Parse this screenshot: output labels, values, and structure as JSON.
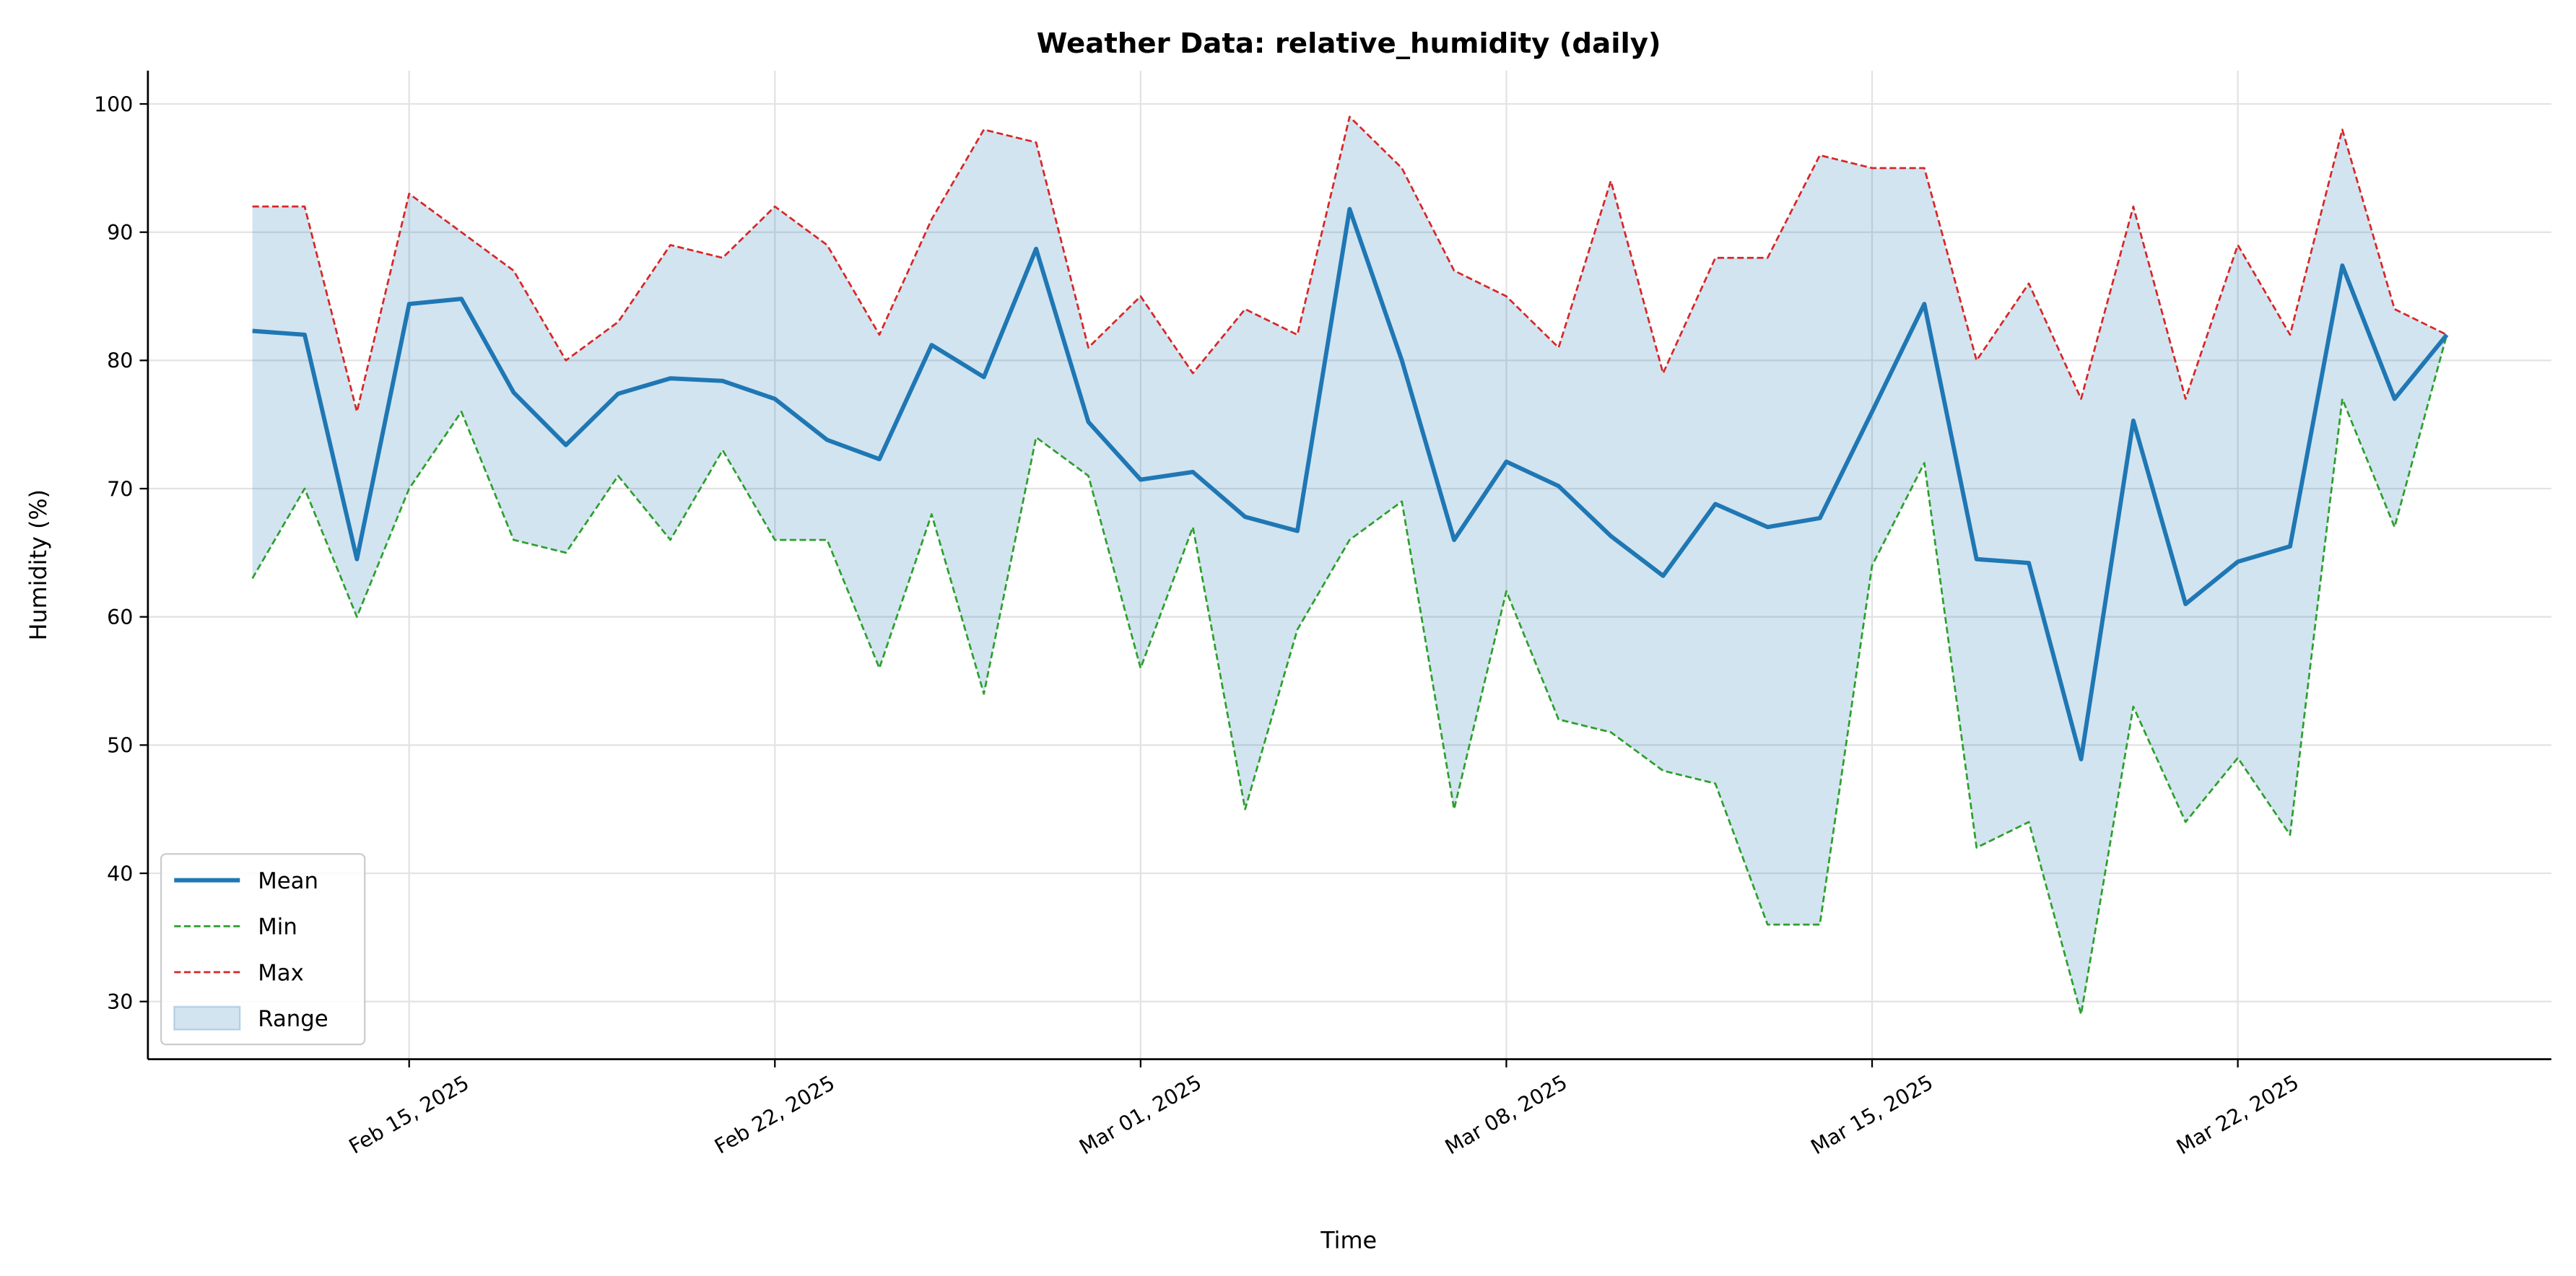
{
  "chart_data": {
    "type": "line",
    "title": "Weather Data: relative_humidity (daily)",
    "x_label": "Time",
    "y_label": "Humidity (%)",
    "x": [
      "2025-02-12",
      "2025-02-13",
      "2025-02-14",
      "2025-02-15",
      "2025-02-16",
      "2025-02-17",
      "2025-02-18",
      "2025-02-19",
      "2025-02-20",
      "2025-02-21",
      "2025-02-22",
      "2025-02-23",
      "2025-02-24",
      "2025-02-25",
      "2025-02-26",
      "2025-02-27",
      "2025-02-28",
      "2025-03-01",
      "2025-03-02",
      "2025-03-03",
      "2025-03-04",
      "2025-03-05",
      "2025-03-06",
      "2025-03-07",
      "2025-03-08",
      "2025-03-09",
      "2025-03-10",
      "2025-03-11",
      "2025-03-12",
      "2025-03-13",
      "2025-03-14",
      "2025-03-15",
      "2025-03-16",
      "2025-03-17",
      "2025-03-18",
      "2025-03-19",
      "2025-03-20",
      "2025-03-21",
      "2025-03-22",
      "2025-03-23",
      "2025-03-24",
      "2025-03-25",
      "2025-03-26"
    ],
    "series": [
      {
        "name": "Mean",
        "color": "#1f77b4",
        "style": "solid",
        "values": [
          82.3,
          82,
          64.5,
          84.4,
          84.8,
          77.5,
          73.4,
          77.4,
          78.6,
          78.4,
          77,
          73.8,
          72.3,
          81.2,
          78.7,
          88.7,
          75.2,
          70.7,
          71.3,
          67.8,
          66.7,
          91.8,
          80,
          66,
          72.1,
          70.2,
          66.3,
          63.2,
          68.8,
          67,
          67.7,
          76,
          84.4,
          64.5,
          64.2,
          48.9,
          75.3,
          61,
          64.3,
          65.5,
          87.4,
          77,
          82
        ]
      },
      {
        "name": "Min",
        "color": "#2ca02c",
        "style": "dashed",
        "values": [
          63,
          70,
          60,
          70,
          76,
          66,
          65,
          71,
          66,
          73,
          66,
          66,
          56,
          68,
          54,
          74,
          71,
          56,
          67,
          45,
          59,
          66,
          69,
          45,
          62,
          52,
          51,
          48,
          47,
          36,
          36,
          64,
          72,
          42,
          44,
          29,
          53,
          44,
          49,
          43,
          77,
          67,
          82
        ]
      },
      {
        "name": "Max",
        "color": "#d62728",
        "style": "dashed",
        "values": [
          92,
          92,
          76,
          93,
          90,
          87,
          80,
          83,
          89,
          88,
          92,
          89,
          82,
          91,
          98,
          97,
          81,
          85,
          79,
          84,
          82,
          99,
          95,
          87,
          85,
          81,
          94,
          79,
          88,
          88,
          96,
          95,
          95,
          80,
          86,
          77,
          92,
          77,
          89,
          82,
          98,
          84,
          82
        ]
      }
    ],
    "range": {
      "name": "Range",
      "color": "#1f77b4",
      "between": [
        "Min",
        "Max"
      ]
    },
    "xlim": [
      "2025-02-10",
      "2025-03-28"
    ],
    "xticks": [
      {
        "value": "2025-02-15",
        "label": "Feb 15, 2025"
      },
      {
        "value": "2025-02-22",
        "label": "Feb 22, 2025"
      },
      {
        "value": "2025-03-01",
        "label": "Mar 01, 2025"
      },
      {
        "value": "2025-03-08",
        "label": "Mar 08, 2025"
      },
      {
        "value": "2025-03-15",
        "label": "Mar 15, 2025"
      },
      {
        "value": "2025-03-22",
        "label": "Mar 22, 2025"
      }
    ],
    "ylim": [
      25.5,
      102.6
    ],
    "yticks": [
      30,
      40,
      50,
      60,
      70,
      80,
      90,
      100
    ],
    "grid": true,
    "legend": "lower left"
  }
}
